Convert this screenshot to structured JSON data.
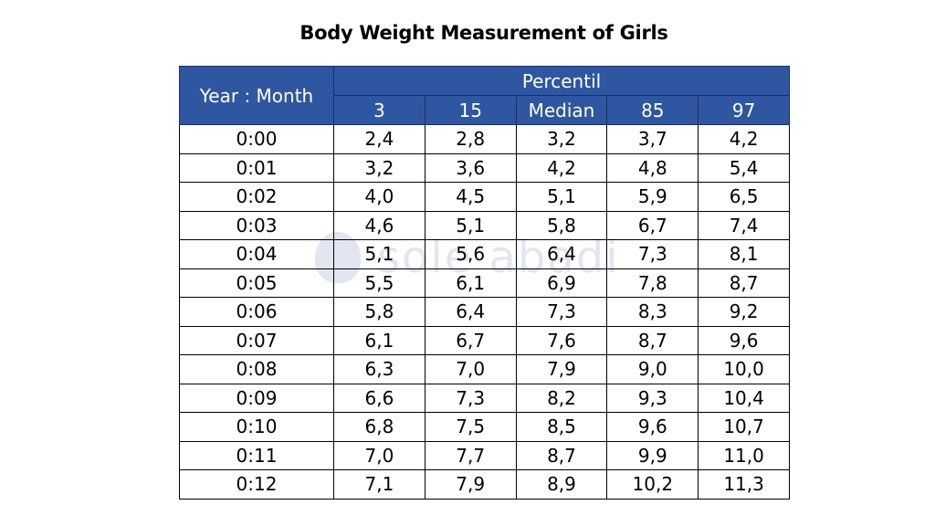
{
  "title": "Body Weight Measurement of Girls",
  "watermark": "sole abadi",
  "table": {
    "year_header": "Year : Month",
    "group_header": "Percentil",
    "percentiles": [
      "3",
      "15",
      "Median",
      "85",
      "97"
    ],
    "rows": [
      {
        "age": "0:00",
        "values": [
          "2,4",
          "2,8",
          "3,2",
          "3,7",
          "4,2"
        ]
      },
      {
        "age": "0:01",
        "values": [
          "3,2",
          "3,6",
          "4,2",
          "4,8",
          "5,4"
        ]
      },
      {
        "age": "0:02",
        "values": [
          "4,0",
          "4,5",
          "5,1",
          "5,9",
          "6,5"
        ]
      },
      {
        "age": "0:03",
        "values": [
          "4,6",
          "5,1",
          "5,8",
          "6,7",
          "7,4"
        ]
      },
      {
        "age": "0:04",
        "values": [
          "5,1",
          "5,6",
          "6,4",
          "7,3",
          "8,1"
        ]
      },
      {
        "age": "0:05",
        "values": [
          "5,5",
          "6,1",
          "6,9",
          "7,8",
          "8,7"
        ]
      },
      {
        "age": "0:06",
        "values": [
          "5,8",
          "6,4",
          "7,3",
          "8,3",
          "9,2"
        ]
      },
      {
        "age": "0:07",
        "values": [
          "6,1",
          "6,7",
          "7,6",
          "8,7",
          "9,6"
        ]
      },
      {
        "age": "0:08",
        "values": [
          "6,3",
          "7,0",
          "7,9",
          "9,0",
          "10,0"
        ]
      },
      {
        "age": "0:09",
        "values": [
          "6,6",
          "7,3",
          "8,2",
          "9,3",
          "10,4"
        ]
      },
      {
        "age": "0:10",
        "values": [
          "6,8",
          "7,5",
          "8,5",
          "9,6",
          "10,7"
        ]
      },
      {
        "age": "0:11",
        "values": [
          "7,0",
          "7,7",
          "8,7",
          "9,9",
          "11,0"
        ]
      },
      {
        "age": "0:12",
        "values": [
          "7,1",
          "7,9",
          "8,9",
          "10,2",
          "11,3"
        ]
      }
    ]
  }
}
